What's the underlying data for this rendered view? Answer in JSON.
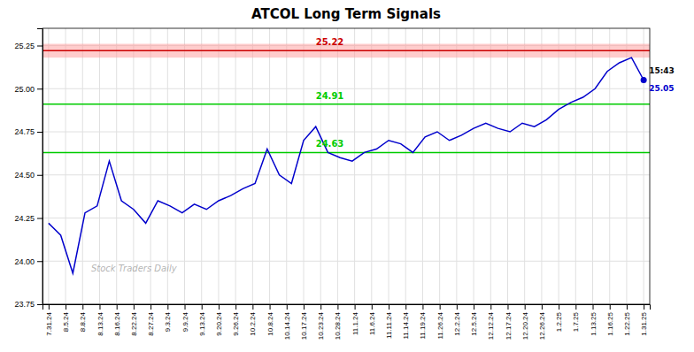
{
  "chart_data": {
    "type": "line",
    "title": "ATCOL Long Term Signals",
    "x": [
      0,
      1,
      2,
      3,
      4,
      5,
      6,
      7,
      8,
      9,
      10,
      11,
      12,
      13,
      14,
      15,
      16,
      17,
      18,
      19,
      20,
      21,
      22,
      23,
      24,
      25,
      26,
      27,
      28,
      29,
      30,
      31,
      32,
      33,
      34,
      35,
      36,
      37,
      38,
      39,
      40,
      41,
      42,
      43,
      44,
      45,
      46,
      47,
      48,
      49
    ],
    "series": [
      {
        "color": "#0000cc",
        "values": [
          24.22,
          24.15,
          23.93,
          24.28,
          24.32,
          24.58,
          24.35,
          24.3,
          24.22,
          24.35,
          24.32,
          24.28,
          24.33,
          24.3,
          24.35,
          24.38,
          24.42,
          24.45,
          24.65,
          24.5,
          24.45,
          24.7,
          24.78,
          24.63,
          24.6,
          24.58,
          24.63,
          24.65,
          24.7,
          24.68,
          24.63,
          24.72,
          24.75,
          24.7,
          24.73,
          24.77,
          24.8,
          24.77,
          24.75,
          24.8,
          24.78,
          24.82,
          24.88,
          24.92,
          24.95,
          25.0,
          25.1,
          25.15,
          25.18,
          25.05
        ]
      }
    ],
    "lines": [
      {
        "value": 25.22,
        "label": "25.22",
        "color": "#cc0000"
      },
      {
        "value": 24.91,
        "label": "24.91",
        "color": "#00cc00"
      },
      {
        "value": 24.63,
        "label": "24.63",
        "color": "#00cc00"
      }
    ],
    "bands": [
      {
        "range": [
          25.18,
          25.26
        ],
        "color": "#ff9999"
      }
    ],
    "last_point": {
      "time": "15:43",
      "value": 25.05
    },
    "watermark": "Stock Traders Daily",
    "xlim": [
      -0.5,
      49.5
    ],
    "xticks": [
      {
        "value": 0,
        "label": "7.31.24"
      },
      {
        "value": 1.4,
        "label": "8.5.24"
      },
      {
        "value": 2.8,
        "label": "8.8.24"
      },
      {
        "value": 4.2,
        "label": "8.13.24"
      },
      {
        "value": 5.6,
        "label": "8.16.24"
      },
      {
        "value": 7,
        "label": "8.22.24"
      },
      {
        "value": 8.4,
        "label": "8.27.24"
      },
      {
        "value": 9.8,
        "label": "9.3.24"
      },
      {
        "value": 11.2,
        "label": "9.9.24"
      },
      {
        "value": 12.6,
        "label": "9.13.24"
      },
      {
        "value": 14,
        "label": "9.20.24"
      },
      {
        "value": 15.4,
        "label": "9.26.24"
      },
      {
        "value": 16.8,
        "label": "10.2.24"
      },
      {
        "value": 18.2,
        "label": "10.8.24"
      },
      {
        "value": 19.6,
        "label": "10.14.24"
      },
      {
        "value": 21,
        "label": "10.17.24"
      },
      {
        "value": 22.4,
        "label": "10.23.24"
      },
      {
        "value": 23.8,
        "label": "10.28.24"
      },
      {
        "value": 25.2,
        "label": "11.1.24"
      },
      {
        "value": 26.6,
        "label": "11.6.24"
      },
      {
        "value": 28,
        "label": "11.11.24"
      },
      {
        "value": 29.4,
        "label": "11.14.24"
      },
      {
        "value": 30.8,
        "label": "11.19.24"
      },
      {
        "value": 32.2,
        "label": "11.26.24"
      },
      {
        "value": 33.6,
        "label": "12.2.24"
      },
      {
        "value": 35,
        "label": "12.5.24"
      },
      {
        "value": 36.4,
        "label": "12.12.24"
      },
      {
        "value": 37.8,
        "label": "12.17.24"
      },
      {
        "value": 39.2,
        "label": "12.20.24"
      },
      {
        "value": 40.6,
        "label": "12.26.24"
      },
      {
        "value": 42,
        "label": "1.2.25"
      },
      {
        "value": 43.4,
        "label": "1.7.25"
      },
      {
        "value": 44.8,
        "label": "1.13.25"
      },
      {
        "value": 46.2,
        "label": "1.16.25"
      },
      {
        "value": 47.6,
        "label": "1.22.25"
      },
      {
        "value": 49,
        "label": "1.31.25"
      }
    ],
    "ylim": [
      23.75,
      25.35
    ],
    "yticks": [
      23.75,
      {
        "value": 24.0,
        "label": "24.00"
      },
      24.25,
      {
        "value": 24.5,
        "label": "24.50"
      },
      24.75,
      {
        "value": 25.0,
        "label": "25.00"
      },
      25.25
    ],
    "grid": true
  }
}
